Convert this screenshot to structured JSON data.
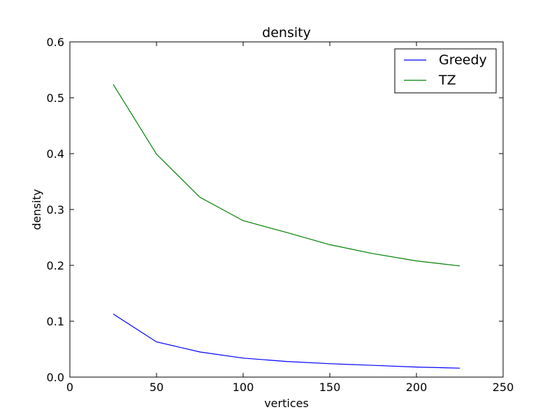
{
  "chart_data": {
    "type": "line",
    "title": "density",
    "xlabel": "vertices",
    "ylabel": "density",
    "xlim": [
      0,
      250
    ],
    "ylim": [
      0.0,
      0.6
    ],
    "xticks": [
      0,
      50,
      100,
      150,
      200,
      250
    ],
    "yticks": [
      0.0,
      0.1,
      0.2,
      0.3,
      0.4,
      0.5,
      0.6
    ],
    "xtick_labels": [
      "0",
      "50",
      "100",
      "150",
      "200",
      "250"
    ],
    "ytick_labels": [
      "0.0",
      "0.1",
      "0.2",
      "0.3",
      "0.4",
      "0.5",
      "0.6"
    ],
    "grid": false,
    "legend_position": "top-right",
    "x": [
      25,
      50,
      75,
      100,
      125,
      150,
      175,
      200,
      225
    ],
    "series": [
      {
        "name": "Greedy",
        "color": "#0000ff",
        "values": [
          0.113,
          0.063,
          0.045,
          0.034,
          0.028,
          0.024,
          0.021,
          0.018,
          0.016
        ]
      },
      {
        "name": "TZ",
        "color": "#008000",
        "values": [
          0.524,
          0.399,
          0.322,
          0.28,
          0.259,
          0.237,
          0.221,
          0.208,
          0.199
        ]
      }
    ]
  }
}
